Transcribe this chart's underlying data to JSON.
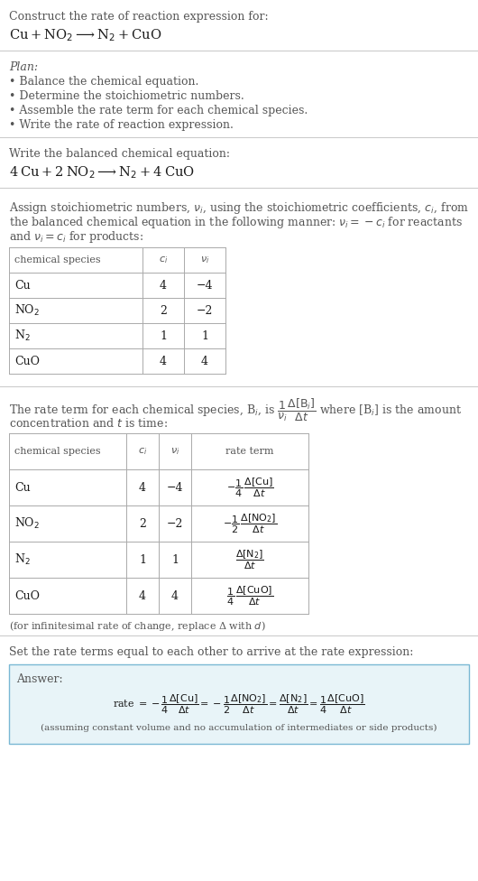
{
  "bg_color": "#ffffff",
  "text_color": "#1a1a1a",
  "gray_text": "#555555",
  "section1_title": "Construct the rate of reaction expression for:",
  "section1_eq": "Cu + NO$_2$ ⟶ N$_2$ + CuO",
  "plan_title": "Plan:",
  "plan_items": [
    "• Balance the chemical equation.",
    "• Determine the stoichiometric numbers.",
    "• Assemble the rate term for each chemical species.",
    "• Write the rate of reaction expression."
  ],
  "section2_title": "Write the balanced chemical equation:",
  "section2_eq": "4 Cu + 2 NO$_2$ ⟶ N$_2$ + 4 CuO",
  "table1_headers": [
    "chemical species",
    "$c_i$",
    "$\\nu_i$"
  ],
  "table1_rows": [
    [
      "Cu",
      "4",
      "−4"
    ],
    [
      "NO$_2$",
      "2",
      "−2"
    ],
    [
      "N$_2$",
      "1",
      "1"
    ],
    [
      "CuO",
      "4",
      "4"
    ]
  ],
  "table2_headers": [
    "chemical species",
    "$c_i$",
    "$\\nu_i$",
    "rate term"
  ],
  "table2_rows": [
    [
      "Cu",
      "4",
      "−4",
      "$-\\dfrac{1}{4}\\,\\dfrac{\\Delta[\\mathrm{Cu}]}{\\Delta t}$"
    ],
    [
      "NO$_2$",
      "2",
      "−2",
      "$-\\dfrac{1}{2}\\,\\dfrac{\\Delta[\\mathrm{NO_2}]}{\\Delta t}$"
    ],
    [
      "N$_2$",
      "1",
      "1",
      "$\\dfrac{\\Delta[\\mathrm{N_2}]}{\\Delta t}$"
    ],
    [
      "CuO",
      "4",
      "4",
      "$\\dfrac{1}{4}\\,\\dfrac{\\Delta[\\mathrm{CuO}]}{\\Delta t}$"
    ]
  ],
  "infinitesimal_note": "(for infinitesimal rate of change, replace Δ with $d$)",
  "section5_text": "Set the rate terms equal to each other to arrive at the rate expression:",
  "answer_label": "Answer:",
  "answer_note": "(assuming constant volume and no accumulation of intermediates or side products)",
  "answer_box_color": "#e8f4f8",
  "answer_box_border": "#7ab8d4"
}
